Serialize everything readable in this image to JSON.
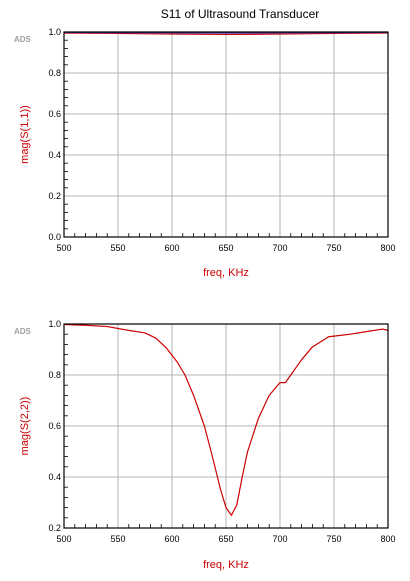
{
  "title": "S11 of Ultrasound Transducer",
  "watermark": "ADS",
  "chart_data": [
    {
      "type": "line",
      "xlabel": "freq, KHz",
      "ylabel": "mag(S(1,1))",
      "xlim": [
        500,
        800
      ],
      "ylim": [
        0.0,
        1.0
      ],
      "xticks": [
        500,
        550,
        600,
        650,
        700,
        750,
        800
      ],
      "yticks": [
        0.0,
        0.2,
        0.4,
        0.6,
        0.8,
        1.0
      ],
      "ytick_labels": [
        "0.0",
        "0.2",
        "0.4",
        "0.6",
        "0.8",
        "1.0"
      ],
      "grid": true,
      "series": [
        {
          "color": "#cc0000",
          "x": [
            500,
            550,
            600,
            650,
            700,
            750,
            800
          ],
          "y": [
            0.995,
            0.993,
            0.99,
            0.988,
            0.99,
            0.993,
            0.995
          ]
        },
        {
          "color": "#3333aa",
          "x": [
            500,
            550,
            600,
            650,
            700,
            750,
            800
          ],
          "y": [
            0.998,
            0.997,
            0.996,
            0.995,
            0.996,
            0.997,
            0.998
          ]
        }
      ]
    },
    {
      "type": "line",
      "xlabel": "freq, KHz",
      "ylabel": "mag(S(2,2))",
      "xlim": [
        500,
        800
      ],
      "ylim": [
        0.2,
        1.0
      ],
      "xticks": [
        500,
        550,
        600,
        650,
        700,
        750,
        800
      ],
      "yticks": [
        0.2,
        0.4,
        0.6,
        0.8,
        1.0
      ],
      "ytick_labels": [
        "0.2",
        "0.4",
        "0.6",
        "0.8",
        "1.0"
      ],
      "grid": true,
      "series": [
        {
          "color": "#cc0000",
          "x": [
            500,
            520,
            540,
            560,
            575,
            585,
            595,
            605,
            612,
            620,
            630,
            638,
            645,
            650,
            655,
            660,
            665,
            670,
            680,
            690,
            700,
            705,
            710,
            720,
            730,
            745,
            755,
            765,
            780,
            795,
            800
          ],
          "y": [
            0.998,
            0.995,
            0.99,
            0.975,
            0.965,
            0.945,
            0.905,
            0.85,
            0.8,
            0.72,
            0.6,
            0.47,
            0.35,
            0.28,
            0.25,
            0.29,
            0.4,
            0.5,
            0.63,
            0.72,
            0.77,
            0.77,
            0.8,
            0.86,
            0.91,
            0.95,
            0.955,
            0.96,
            0.97,
            0.98,
            0.975
          ]
        }
      ]
    }
  ]
}
